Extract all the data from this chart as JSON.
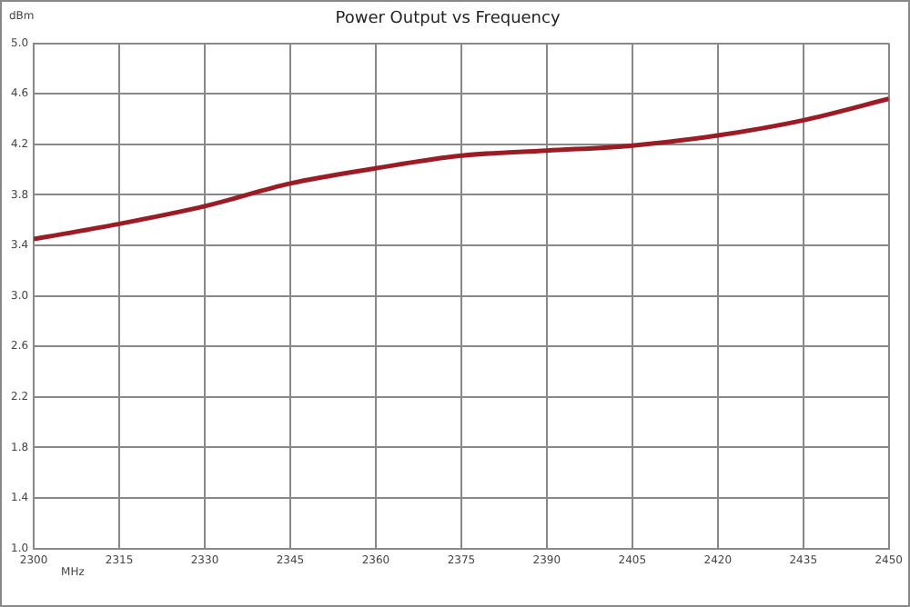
{
  "chart_data": {
    "type": "line",
    "title": "Power Output vs Frequency",
    "xlabel": "MHz",
    "ylabel": "dBm",
    "x": [
      2300,
      2315,
      2330,
      2345,
      2360,
      2375,
      2390,
      2405,
      2420,
      2435,
      2450
    ],
    "series": [
      {
        "color": "#9b1c24",
        "values": [
          3.45,
          3.57,
          3.71,
          3.89,
          4.01,
          4.11,
          4.15,
          4.19,
          4.27,
          4.39,
          4.56
        ]
      }
    ],
    "xlim": [
      2300,
      2450
    ],
    "xticks": [
      2300,
      2315,
      2330,
      2345,
      2360,
      2375,
      2390,
      2405,
      2420,
      2435,
      2450
    ],
    "ylim": [
      1.0,
      5.0
    ],
    "yticks": [
      {
        "value": 1.0,
        "label": "1.0"
      },
      {
        "value": 1.4,
        "label": "1.4"
      },
      {
        "value": 1.8,
        "label": "1.8"
      },
      {
        "value": 2.2,
        "label": "2.2"
      },
      {
        "value": 2.6,
        "label": "2.6"
      },
      {
        "value": 3.0,
        "label": "3.0"
      },
      {
        "value": 3.4,
        "label": "3.4"
      },
      {
        "value": 3.8,
        "label": "3.8"
      },
      {
        "value": 4.2,
        "label": "4.2"
      },
      {
        "value": 4.6,
        "label": "4.6"
      },
      {
        "value": 5.0,
        "label": "5.0"
      }
    ],
    "grid": true,
    "marker": "none",
    "line_style": "solid",
    "legend": false
  }
}
